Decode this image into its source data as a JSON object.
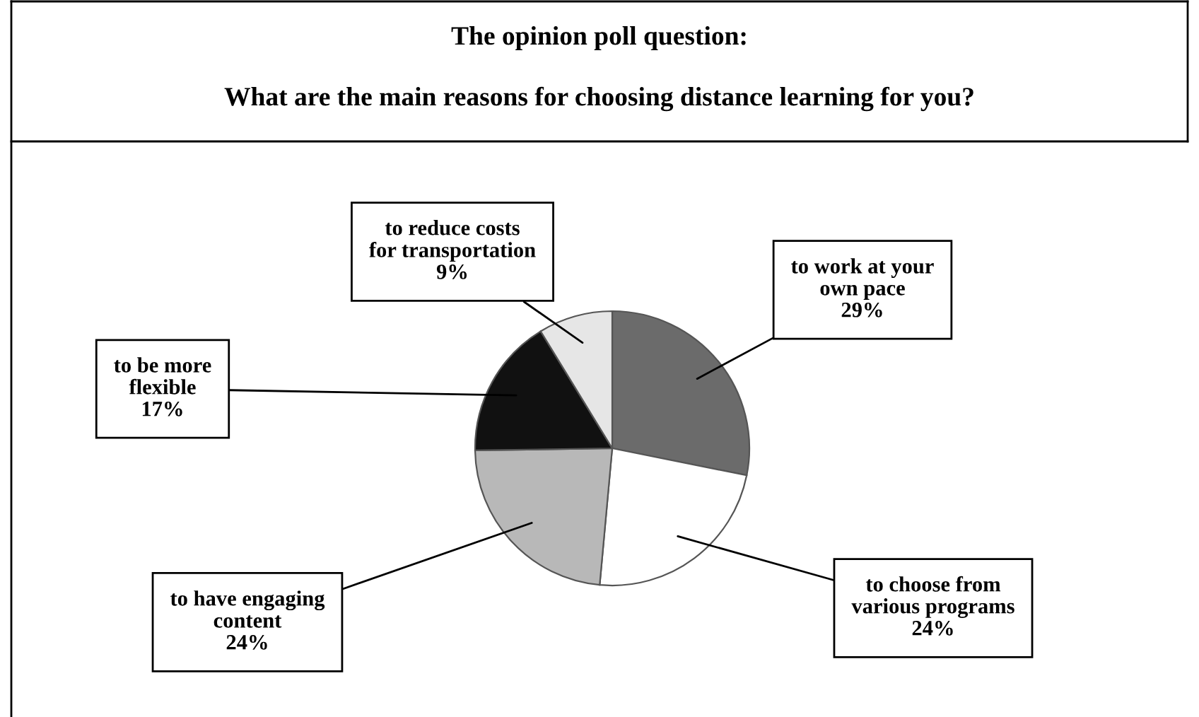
{
  "chart_data": {
    "type": "pie",
    "title": "The opinion poll question:",
    "subtitle": "What are the main reasons for choosing distance learning for you?",
    "categories": [
      "to work at your\nown pace",
      "to choose from\nvarious programs",
      "to have engaging\ncontent",
      "to be more\nflexible",
      "to reduce costs\nfor transportation"
    ],
    "values": [
      29,
      24,
      24,
      17,
      9
    ],
    "value_labels": [
      "29%",
      "24%",
      "24%",
      "17%",
      "9%"
    ],
    "colors": [
      "#6b6b6b",
      "#ffffff",
      "#b8b8b8",
      "#111111",
      "#e6e6e6"
    ]
  }
}
